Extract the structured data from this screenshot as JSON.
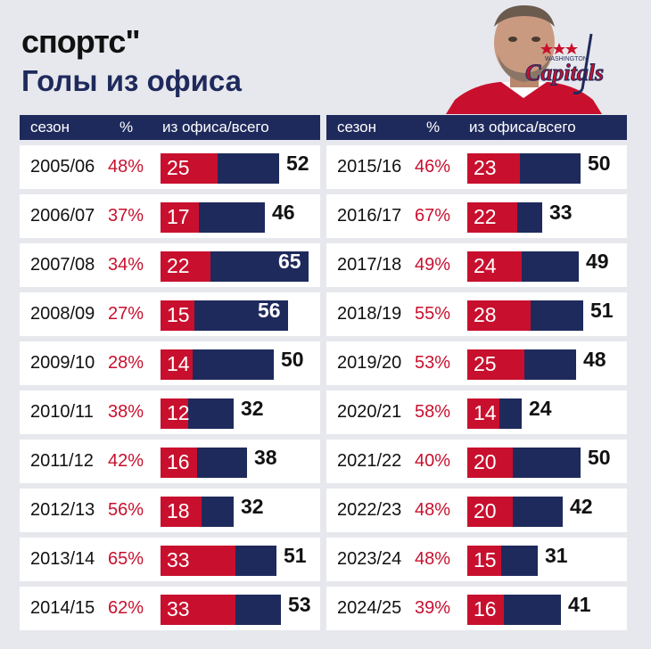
{
  "brand": "спортс\"",
  "title": "Голы из офиса",
  "team_logo": {
    "wordmark": "Capitals",
    "city": "WASHINGTON",
    "colors": {
      "red": "#c8102e",
      "navy": "#1f2a5c"
    }
  },
  "photo": {
    "subject": "hockey player portrait"
  },
  "colors": {
    "office": "#c8102e",
    "total": "#1f2a5c",
    "header": "#1f2a5c",
    "pct": "#c8102e"
  },
  "headers": {
    "season": "сезон",
    "pct": "%",
    "share": "из офиса/всего"
  },
  "chart_data": {
    "type": "bar",
    "title": "Голы из офиса",
    "columns": [
      "сезон",
      "%",
      "из офиса/всего"
    ],
    "series": [
      {
        "name": "из офиса"
      },
      {
        "name": "всего"
      }
    ],
    "rows": [
      {
        "season": "2005/06",
        "pct": "48%",
        "office": 25,
        "total": 52
      },
      {
        "season": "2006/07",
        "pct": "37%",
        "office": 17,
        "total": 46
      },
      {
        "season": "2007/08",
        "pct": "34%",
        "office": 22,
        "total": 65
      },
      {
        "season": "2008/09",
        "pct": "27%",
        "office": 15,
        "total": 56
      },
      {
        "season": "2009/10",
        "pct": "28%",
        "office": 14,
        "total": 50
      },
      {
        "season": "2010/11",
        "pct": "38%",
        "office": 12,
        "total": 32
      },
      {
        "season": "2011/12",
        "pct": "42%",
        "office": 16,
        "total": 38
      },
      {
        "season": "2012/13",
        "pct": "56%",
        "office": 18,
        "total": 32
      },
      {
        "season": "2013/14",
        "pct": "65%",
        "office": 33,
        "total": 51
      },
      {
        "season": "2014/15",
        "pct": "62%",
        "office": 33,
        "total": 53
      },
      {
        "season": "2015/16",
        "pct": "46%",
        "office": 23,
        "total": 50
      },
      {
        "season": "2016/17",
        "pct": "67%",
        "office": 22,
        "total": 33
      },
      {
        "season": "2017/18",
        "pct": "49%",
        "office": 24,
        "total": 49
      },
      {
        "season": "2018/19",
        "pct": "55%",
        "office": 28,
        "total": 51
      },
      {
        "season": "2019/20",
        "pct": "53%",
        "office": 25,
        "total": 48
      },
      {
        "season": "2020/21",
        "pct": "58%",
        "office": 14,
        "total": 24
      },
      {
        "season": "2021/22",
        "pct": "40%",
        "office": 20,
        "total": 50
      },
      {
        "season": "2022/23",
        "pct": "48%",
        "office": 20,
        "total": 42
      },
      {
        "season": "2023/24",
        "pct": "48%",
        "office": 15,
        "total": 31
      },
      {
        "season": "2024/25",
        "pct": "39%",
        "office": 16,
        "total": 41
      }
    ]
  }
}
